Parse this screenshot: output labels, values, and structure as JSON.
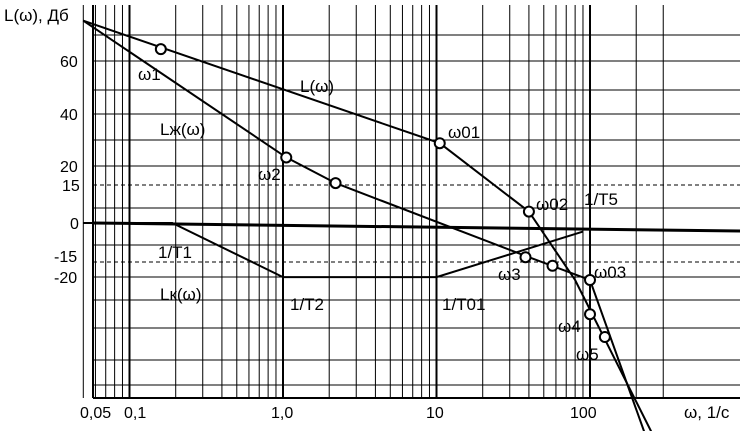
{
  "chart_data": {
    "type": "line",
    "title": "",
    "ylabel": "L(ω), Дб",
    "xlabel": "ω, 1/с",
    "xscale": "log",
    "xlim": [
      0.05,
      400
    ],
    "grid": true,
    "x_ticks": [
      {
        "value": 0.05,
        "label": "0,05"
      },
      {
        "value": 0.1,
        "label": "0,1"
      },
      {
        "value": 1.0,
        "label": "1,0"
      },
      {
        "value": 10,
        "label": "10"
      },
      {
        "value": 100,
        "label": "100"
      }
    ],
    "y_ticks": [
      {
        "value": 60,
        "label": "60"
      },
      {
        "value": 40,
        "label": "40"
      },
      {
        "value": 20,
        "label": "20"
      },
      {
        "value": 15,
        "label": "15"
      },
      {
        "value": 0,
        "label": "0"
      },
      {
        "value": -15,
        "label": "-15"
      },
      {
        "value": -20,
        "label": "-20"
      }
    ],
    "dashed_levels": [
      15,
      -15
    ],
    "series": [
      {
        "name": "L(ω)",
        "points": [
          [
            0.05,
            71
          ],
          [
            10.5,
            28
          ],
          [
            40,
            4
          ],
          [
            80,
            -20
          ],
          [
            290,
            -80
          ]
        ]
      },
      {
        "name": "Lж(ω)",
        "points": [
          [
            0.05,
            71
          ],
          [
            1.05,
            23
          ],
          [
            2.2,
            14
          ],
          [
            40,
            -12
          ],
          [
            100,
            -20
          ],
          [
            250,
            -80
          ]
        ]
      },
      {
        "name": "Lк(ω)",
        "points": [
          [
            0.05,
            0
          ],
          [
            0.19,
            0
          ],
          [
            1.0,
            -19
          ],
          [
            10,
            -19
          ],
          [
            90,
            -3
          ]
        ]
      }
    ],
    "axis_line": [
      [
        0.05,
        0
      ],
      [
        260,
        -3
      ]
    ],
    "markers": [
      {
        "label": "ω1",
        "x": 0.16,
        "y": 61
      },
      {
        "label": "ω2",
        "x": 1.05,
        "y": 23
      },
      {
        "label": "ω01",
        "x": 10.5,
        "y": 28
      },
      {
        "label": "ω02",
        "x": 40,
        "y": 4
      },
      {
        "label": "",
        "x": 2.2,
        "y": 14
      },
      {
        "label": "ω3",
        "x": 38,
        "y": -12
      },
      {
        "label": "",
        "x": 57,
        "y": -15
      },
      {
        "label": "ω03",
        "x": 100,
        "y": -20
      },
      {
        "label": "ω4",
        "x": 100,
        "y": -32
      },
      {
        "label": "ω5",
        "x": 125,
        "y": -40
      }
    ],
    "annotations": [
      {
        "text": "L(ω)"
      },
      {
        "text": "Lж(ω)"
      },
      {
        "text": "Lк(ω)"
      },
      {
        "text": "1/T1"
      },
      {
        "text": "1/T2"
      },
      {
        "text": "1/T01"
      },
      {
        "text": "1/T5"
      }
    ]
  }
}
